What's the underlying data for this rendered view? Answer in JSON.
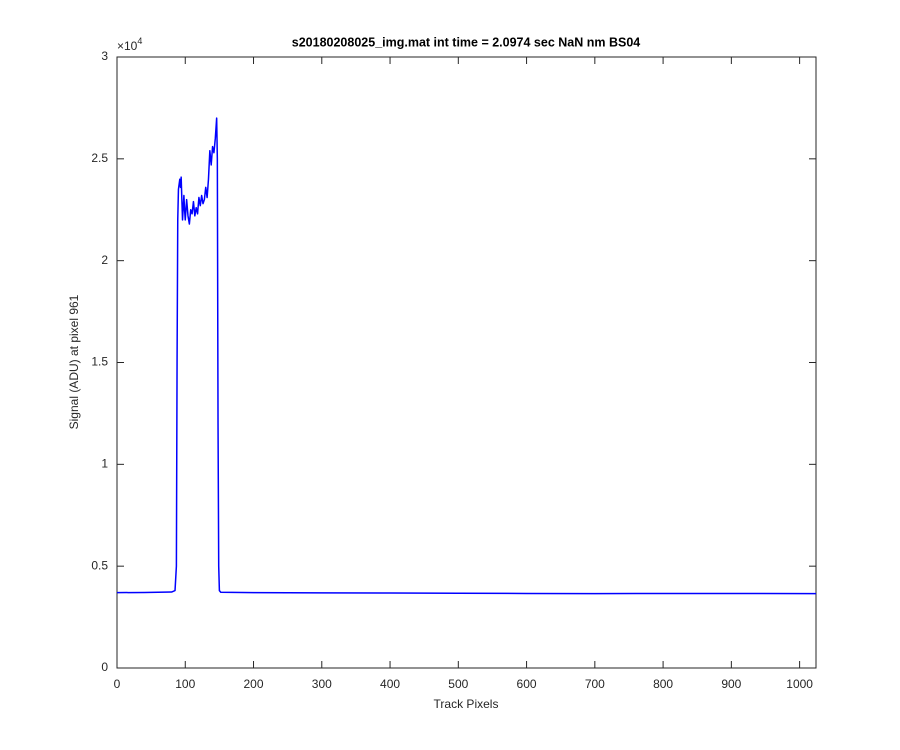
{
  "chart_data": {
    "type": "line",
    "title": "s20180208025_img.mat int time = 2.0974 sec  NaN nm BS04",
    "x_label": "Track Pixels",
    "y_label": "Signal (ADU) at pixel 961",
    "y_multiplier": {
      "base": "×10",
      "exponent": "4"
    },
    "xlim": [
      0,
      1024
    ],
    "ylim": [
      0,
      30000
    ],
    "xticks": [
      0,
      100,
      200,
      300,
      400,
      500,
      600,
      700,
      800,
      900,
      1000
    ],
    "yticks": [
      {
        "value": 0,
        "label": "0"
      },
      {
        "value": 5000,
        "label": "0.5"
      },
      {
        "value": 10000,
        "label": "1"
      },
      {
        "value": 15000,
        "label": "1.5"
      },
      {
        "value": 20000,
        "label": "2"
      },
      {
        "value": 25000,
        "label": "2.5"
      },
      {
        "value": 30000,
        "label": "3"
      }
    ],
    "grid": false,
    "series": [
      {
        "color": "#0000ff",
        "x": [
          0,
          40,
          80,
          85,
          87,
          88,
          89,
          90,
          92,
          93,
          94,
          95,
          96,
          97,
          98,
          99,
          100,
          102,
          104,
          106,
          108,
          110,
          112,
          114,
          116,
          118,
          120,
          122,
          124,
          126,
          128,
          130,
          132,
          134,
          136,
          138,
          140,
          142,
          144,
          146,
          147,
          148,
          149,
          150,
          152,
          200,
          300,
          400,
          500,
          600,
          700,
          800,
          900,
          1024
        ],
        "values": [
          3700,
          3710,
          3730,
          3800,
          5000,
          15000,
          22000,
          23500,
          24000,
          23600,
          24100,
          23000,
          22000,
          22600,
          23200,
          22500,
          22000,
          23000,
          22200,
          21800,
          22500,
          22300,
          22900,
          22200,
          22600,
          22300,
          23100,
          22700,
          23200,
          22800,
          23000,
          23600,
          23100,
          24000,
          25400,
          24700,
          25600,
          25300,
          26000,
          27000,
          25000,
          12000,
          5000,
          3800,
          3720,
          3700,
          3690,
          3680,
          3670,
          3660,
          3650,
          3660,
          3660,
          3650
        ]
      }
    ]
  }
}
